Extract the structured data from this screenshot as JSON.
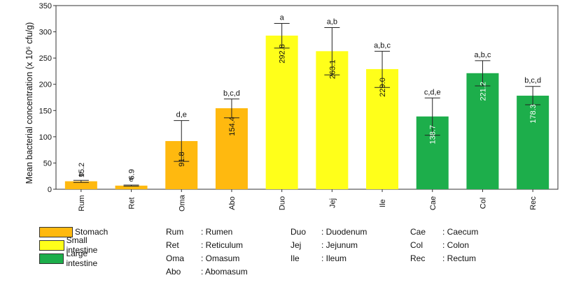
{
  "colors": {
    "stomach": "#FFB90F",
    "small_intestine": "#FFFF1A",
    "large_intestine": "#1DAE4B"
  },
  "chart_data": {
    "type": "bar",
    "ylabel": "Mean bacterial concentration (x 10⁶ cfu/g)",
    "ylim": [
      0,
      350
    ],
    "yticks": [
      0,
      50,
      100,
      150,
      200,
      250,
      300,
      350
    ],
    "categories": [
      "Rum",
      "Ret",
      "Oma",
      "Abo",
      "Duo",
      "Jej",
      "Ile",
      "Cae",
      "Col",
      "Rec"
    ],
    "values": [
      15.2,
      6.9,
      91.8,
      154.4,
      292.8,
      263.1,
      229.0,
      138.7,
      221.2,
      178.3
    ],
    "value_labels": [
      "15.2",
      "6.9",
      "91.8",
      "154.4",
      "292.8",
      "263.1",
      "229.0",
      "138.7",
      "221.2",
      "178.3"
    ],
    "error_low": [
      13,
      6,
      53,
      136,
      269,
      218,
      194,
      103,
      197,
      161
    ],
    "error_high": [
      17,
      8,
      131,
      172,
      316,
      308,
      263,
      174,
      245,
      196
    ],
    "letters": [
      "e",
      "e",
      "d,e",
      "b,c,d",
      "a",
      "a,b",
      "a,b,c",
      "c,d,e",
      "a,b,c",
      "b,c,d"
    ],
    "groups": [
      "stomach",
      "stomach",
      "stomach",
      "stomach",
      "small_intestine",
      "small_intestine",
      "small_intestine",
      "large_intestine",
      "large_intestine",
      "large_intestine"
    ],
    "grid": false
  },
  "legend": [
    {
      "key": "stomach",
      "label": "Stomach"
    },
    {
      "key": "small_intestine",
      "label": "Small intestine"
    },
    {
      "key": "large_intestine",
      "label": "Large intestine"
    }
  ],
  "abbreviations": [
    {
      "code": "Rum",
      "name": ": Rumen"
    },
    {
      "code": "Ret",
      "name": ": Reticulum"
    },
    {
      "code": "Oma",
      "name": ": Omasum"
    },
    {
      "code": "Abo",
      "name": ": Abomasum"
    },
    {
      "code": "Duo",
      "name": ": Duodenum"
    },
    {
      "code": "Jej",
      "name": ": Jejunum"
    },
    {
      "code": "Ile",
      "name": ": Ileum"
    },
    {
      "code": "Cae",
      "name": ": Caecum"
    },
    {
      "code": "Col",
      "name": ": Colon"
    },
    {
      "code": "Rec",
      "name": ": Rectum"
    }
  ]
}
